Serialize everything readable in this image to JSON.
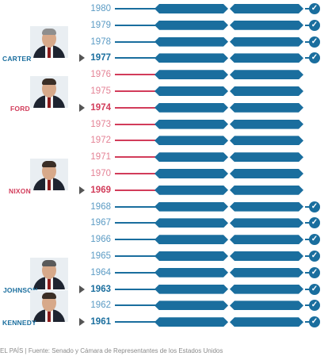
{
  "colors": {
    "blue": "#1a6e9e",
    "blue_light": "#5b9bc4",
    "red": "#d23c5a",
    "red_light": "#e48295",
    "arrow": "#555555",
    "footer": "#8a8a8a"
  },
  "years": [
    {
      "year": "1980",
      "party": "dem",
      "bold": false,
      "president_mark": false,
      "check": true
    },
    {
      "year": "1979",
      "party": "dem",
      "bold": false,
      "president_mark": false,
      "check": true
    },
    {
      "year": "1978",
      "party": "dem",
      "bold": false,
      "president_mark": false,
      "check": true
    },
    {
      "year": "1977",
      "party": "dem",
      "bold": true,
      "president_mark": true,
      "check": true
    },
    {
      "year": "1976",
      "party": "rep",
      "bold": false,
      "president_mark": false,
      "check": false
    },
    {
      "year": "1975",
      "party": "rep",
      "bold": false,
      "president_mark": false,
      "check": false
    },
    {
      "year": "1974",
      "party": "rep",
      "bold": true,
      "president_mark": true,
      "check": false
    },
    {
      "year": "1973",
      "party": "rep",
      "bold": false,
      "president_mark": false,
      "check": false
    },
    {
      "year": "1972",
      "party": "rep",
      "bold": false,
      "president_mark": false,
      "check": false
    },
    {
      "year": "1971",
      "party": "rep",
      "bold": false,
      "president_mark": false,
      "check": false
    },
    {
      "year": "1970",
      "party": "rep",
      "bold": false,
      "president_mark": false,
      "check": false
    },
    {
      "year": "1969",
      "party": "rep",
      "bold": true,
      "president_mark": true,
      "check": false
    },
    {
      "year": "1968",
      "party": "dem",
      "bold": false,
      "president_mark": false,
      "check": true
    },
    {
      "year": "1967",
      "party": "dem",
      "bold": false,
      "president_mark": false,
      "check": true
    },
    {
      "year": "1966",
      "party": "dem",
      "bold": false,
      "president_mark": false,
      "check": true
    },
    {
      "year": "1965",
      "party": "dem",
      "bold": false,
      "president_mark": false,
      "check": true
    },
    {
      "year": "1964",
      "party": "dem",
      "bold": false,
      "president_mark": false,
      "check": true
    },
    {
      "year": "1963",
      "party": "dem",
      "bold": true,
      "president_mark": true,
      "check": true
    },
    {
      "year": "1962",
      "party": "dem",
      "bold": false,
      "president_mark": false,
      "check": true
    },
    {
      "year": "1961",
      "party": "dem",
      "bold": true,
      "president_mark": true,
      "check": true
    }
  ],
  "presidents": [
    {
      "name": "CARTER",
      "party": "dem",
      "year_index": 3
    },
    {
      "name": "FORD",
      "party": "rep",
      "year_index": 6
    },
    {
      "name": "NIXON",
      "party": "rep",
      "year_index": 11
    },
    {
      "name": "JOHNSON",
      "party": "dem",
      "year_index": 17
    },
    {
      "name": "KENNEDY",
      "party": "dem",
      "year_index": 19
    }
  ],
  "check_glyph": "✓",
  "footer": "EL PAÍS | Fuente: Senado y Cámara de Representantes de los Estados Unidos"
}
